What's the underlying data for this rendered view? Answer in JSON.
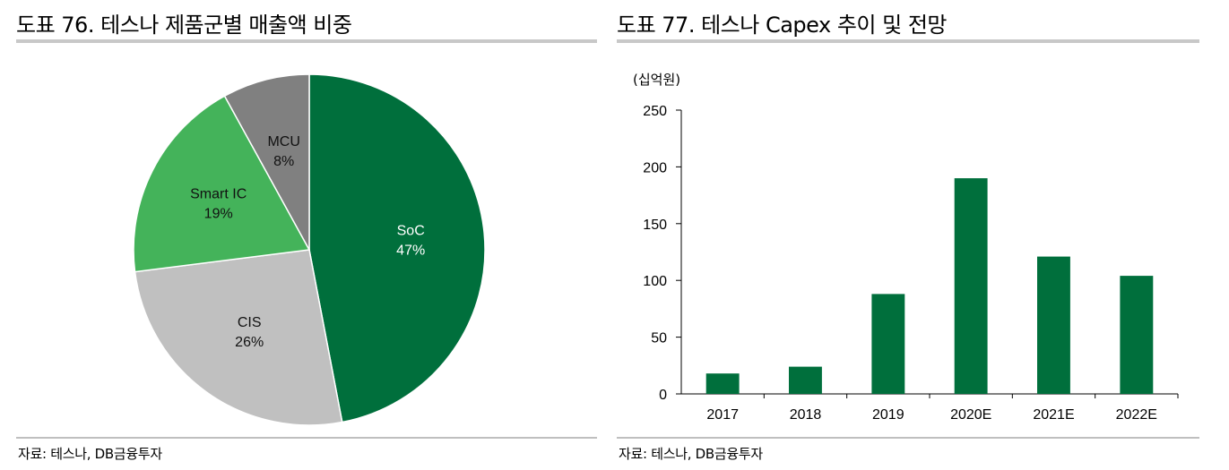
{
  "left_panel": {
    "title": "도표 76. 테스나 제품군별 매출액 비중",
    "source": "자료: 테스나, DB금융투자"
  },
  "right_panel": {
    "title": "도표 77. 테스나 Capex 추이 및 전망",
    "unit": "(십억원)",
    "source": "자료: 테스나, DB금융투자"
  },
  "chart_data": [
    {
      "type": "pie",
      "slices": [
        {
          "label": "SoC",
          "value": 47,
          "value_label": "47%",
          "color": "#006f3c"
        },
        {
          "label": "CIS",
          "value": 26,
          "value_label": "26%",
          "color": "#c0c0c0"
        },
        {
          "label": "Smart IC",
          "value": 19,
          "value_label": "19%",
          "color": "#44b35a"
        },
        {
          "label": "MCU",
          "value": 8,
          "value_label": "8%",
          "color": "#808080"
        }
      ],
      "start": "12 o'clock",
      "direction": "clockwise"
    },
    {
      "type": "bar",
      "categories": [
        "2017",
        "2018",
        "2019",
        "2020E",
        "2021E",
        "2022E"
      ],
      "values": [
        18,
        24,
        88,
        190,
        121,
        104
      ],
      "ylim": [
        0,
        250
      ],
      "yticks": [
        0,
        50,
        100,
        150,
        200,
        250
      ],
      "ylabel": "(십억원)",
      "color": "#006f3c",
      "grid": false
    }
  ]
}
